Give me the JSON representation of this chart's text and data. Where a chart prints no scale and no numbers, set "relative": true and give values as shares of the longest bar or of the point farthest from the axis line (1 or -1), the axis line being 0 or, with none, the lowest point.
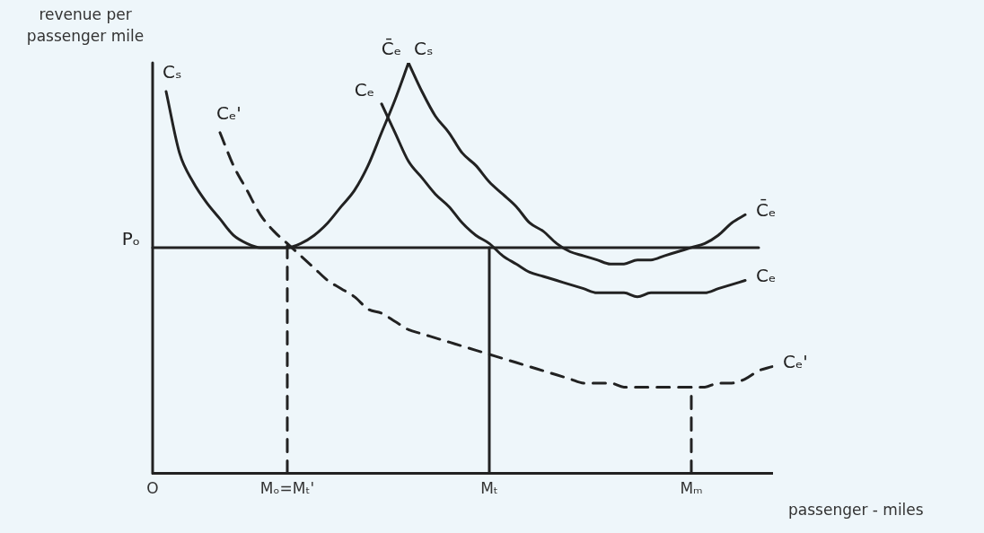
{
  "chart_data": {
    "type": "line",
    "relative": true,
    "xlabel": "passenger - miles",
    "ylabel": "revenue per passenger mile",
    "marker": "none",
    "legend": false,
    "grid": false,
    "categories": [
      "O",
      null,
      null,
      null,
      null,
      null,
      null,
      null,
      null,
      null,
      "Mₒ=Mₜ'",
      null,
      null,
      null,
      null,
      null,
      null,
      null,
      null,
      null,
      null,
      null,
      null,
      null,
      null,
      "Mₜ",
      null,
      null,
      null,
      null,
      null,
      null,
      null,
      null,
      null,
      null,
      null,
      null,
      null,
      null,
      "Mₘ",
      null,
      null,
      null,
      null,
      null,
      null
    ],
    "series": [
      {
        "name": "Cₛ",
        "color": "#222222",
        "line_style": "solid",
        "values": [
          null,
          0.93,
          0.78,
          0.71,
          0.66,
          0.62,
          0.58,
          0.56,
          0.55,
          0.55,
          0.55,
          0.56,
          0.58,
          0.61,
          0.65,
          0.69,
          0.75,
          0.83,
          0.91,
          1,
          null,
          null,
          null,
          null,
          null,
          null,
          null,
          null,
          null,
          null,
          null,
          null,
          null,
          null,
          null,
          null,
          null,
          null,
          null,
          null,
          null,
          null,
          null,
          null,
          null,
          null,
          null
        ]
      },
      {
        "name": "C̄ₑ",
        "color": "#222222",
        "line_style": "solid",
        "values": [
          null,
          null,
          null,
          null,
          null,
          null,
          null,
          null,
          null,
          null,
          null,
          null,
          null,
          null,
          null,
          null,
          null,
          null,
          null,
          1,
          0.93,
          0.87,
          0.83,
          0.78,
          0.75,
          0.71,
          0.68,
          0.65,
          0.61,
          0.59,
          0.56,
          0.54,
          0.53,
          0.52,
          0.51,
          0.51,
          0.52,
          0.52,
          0.53,
          0.54,
          0.55,
          0.56,
          0.58,
          0.61,
          0.63,
          null,
          null
        ]
      },
      {
        "name": "Cₑ",
        "color": "#222222",
        "line_style": "solid",
        "values": [
          null,
          null,
          null,
          null,
          null,
          null,
          null,
          null,
          null,
          null,
          null,
          null,
          null,
          null,
          null,
          null,
          null,
          0.9,
          0.83,
          0.76,
          0.72,
          0.68,
          0.65,
          0.61,
          0.58,
          0.56,
          0.53,
          0.51,
          0.49,
          0.48,
          0.47,
          0.46,
          0.45,
          0.44,
          0.44,
          0.44,
          0.43,
          0.44,
          0.44,
          0.44,
          0.44,
          0.44,
          0.45,
          0.46,
          0.47,
          null,
          null
        ]
      },
      {
        "name": "Cₑ'",
        "color": "#222222",
        "line_style": "dashed",
        "values": [
          null,
          null,
          null,
          null,
          null,
          0.83,
          0.75,
          0.69,
          0.63,
          0.59,
          0.56,
          0.53,
          0.5,
          0.47,
          0.45,
          0.43,
          0.4,
          0.39,
          0.37,
          0.35,
          0.34,
          0.33,
          0.32,
          0.31,
          0.3,
          0.29,
          0.28,
          0.27,
          0.26,
          0.25,
          0.24,
          0.23,
          0.22,
          0.22,
          0.22,
          0.21,
          0.21,
          0.21,
          0.21,
          0.21,
          0.21,
          0.21,
          0.22,
          0.22,
          0.23,
          0.25,
          0.26
        ]
      }
    ],
    "ref_lines": [
      {
        "axis": "y",
        "value": 0.55,
        "label": "Pₒ",
        "line_style": "solid"
      },
      {
        "axis": "x",
        "value": "Mₒ=Mₜ'",
        "line_style": "dashed"
      },
      {
        "axis": "x",
        "value": "Mₜ",
        "line_style": "solid"
      },
      {
        "axis": "x",
        "value": "Mₘ",
        "line_style": "dashed"
      }
    ]
  }
}
